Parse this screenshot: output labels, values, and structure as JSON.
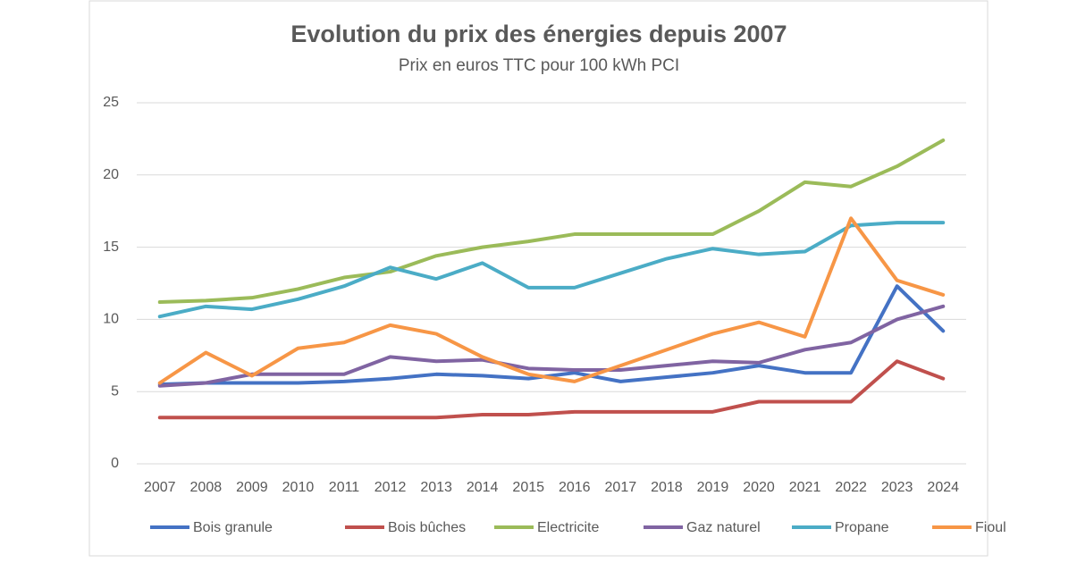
{
  "chart_data": {
    "type": "line",
    "title": "Evolution du prix des énergies depuis 2007",
    "subtitle": "Prix en euros TTC pour 100 kWh PCI",
    "categories": [
      "2007",
      "2008",
      "2009",
      "2010",
      "2011",
      "2012",
      "2013",
      "2014",
      "2015",
      "2016",
      "2017",
      "2018",
      "2019",
      "2020",
      "2021",
      "2022",
      "2023",
      "2024"
    ],
    "ylim": [
      0,
      25
    ],
    "yticks": [
      0,
      5,
      10,
      15,
      20,
      25
    ],
    "grid": true,
    "legend": "bottom",
    "series": [
      {
        "name": "Bois granule",
        "color": "#4472c4",
        "values": [
          5.5,
          5.6,
          5.6,
          5.6,
          5.7,
          5.9,
          6.2,
          6.1,
          5.9,
          6.3,
          5.7,
          6.0,
          6.3,
          6.8,
          6.3,
          6.3,
          12.3,
          9.2
        ]
      },
      {
        "name": "Bois bûches",
        "color": "#c0504d",
        "values": [
          3.2,
          3.2,
          3.2,
          3.2,
          3.2,
          3.2,
          3.2,
          3.4,
          3.4,
          3.6,
          3.6,
          3.6,
          3.6,
          4.3,
          4.3,
          4.3,
          7.1,
          5.9
        ]
      },
      {
        "name": "Electricite",
        "color": "#9bbb59",
        "values": [
          11.2,
          11.3,
          11.5,
          12.1,
          12.9,
          13.3,
          14.4,
          15.0,
          15.4,
          15.9,
          15.9,
          15.9,
          15.9,
          17.5,
          19.5,
          19.2,
          20.6,
          22.4
        ]
      },
      {
        "name": "Gaz naturel",
        "color": "#8064a2",
        "values": [
          5.4,
          5.6,
          6.2,
          6.2,
          6.2,
          7.4,
          7.1,
          7.2,
          6.6,
          6.5,
          6.5,
          6.8,
          7.1,
          7.0,
          7.9,
          8.4,
          10.0,
          10.9
        ]
      },
      {
        "name": "Propane",
        "color": "#4bacc6",
        "values": [
          10.2,
          10.9,
          10.7,
          11.4,
          12.3,
          13.6,
          12.8,
          13.9,
          12.2,
          12.2,
          13.2,
          14.2,
          14.9,
          14.5,
          14.7,
          16.5,
          16.7,
          16.7
        ]
      },
      {
        "name": "Fioul",
        "color": "#f79646",
        "values": [
          5.6,
          7.7,
          6.1,
          8.0,
          8.4,
          9.6,
          9.0,
          7.4,
          6.2,
          5.7,
          6.8,
          7.9,
          9.0,
          9.8,
          8.8,
          17.0,
          12.7,
          11.7
        ]
      }
    ]
  }
}
